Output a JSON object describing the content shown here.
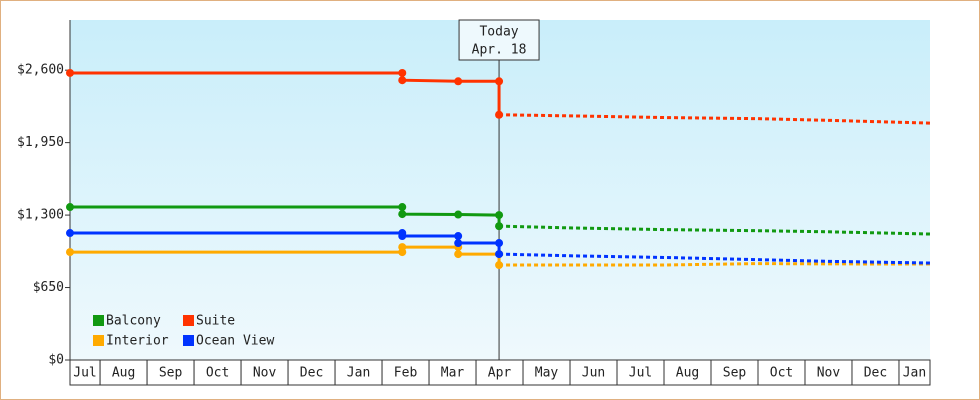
{
  "chart_data": {
    "type": "line",
    "categories": [
      "Jul",
      "Aug",
      "Sep",
      "Oct",
      "Nov",
      "Dec",
      "Jan",
      "Feb",
      "Mar",
      "Apr",
      "May",
      "Jun",
      "Jul",
      "Aug",
      "Sep",
      "Oct",
      "Nov",
      "Dec",
      "Jan"
    ],
    "xlim": [
      0.36,
      18.66
    ],
    "ylim": [
      0,
      3050
    ],
    "yticks": [
      {
        "value": 0,
        "label": "$0"
      },
      {
        "value": 650,
        "label": "$650"
      },
      {
        "value": 1300,
        "label": "$1,300"
      },
      {
        "value": 1950,
        "label": "$1,950"
      },
      {
        "value": 2600,
        "label": "$2,600"
      }
    ],
    "grid": false,
    "legend": "lower left",
    "today": {
      "x": 9.49,
      "label": [
        "Today",
        "Apr. 18"
      ]
    },
    "series": [
      {
        "name": "Balcony",
        "color": "#119911",
        "x": [
          0.36,
          7.43,
          7.43,
          8.62,
          9.49,
          9.49
        ],
        "values": [
          1372,
          1372,
          1309,
          1305,
          1300,
          1201
        ],
        "forecast_x": [
          9.49,
          11,
          13,
          15,
          16.5,
          18.66
        ],
        "forecast_values": [
          1201,
          1185,
          1170,
          1160,
          1150,
          1130
        ]
      },
      {
        "name": "Suite",
        "color": "#ff3300",
        "x": [
          0.36,
          7.43,
          7.43,
          8.62,
          9.49,
          9.49
        ],
        "values": [
          2575,
          2575,
          2510,
          2500,
          2500,
          2200
        ],
        "forecast_x": [
          9.49,
          11,
          13,
          15,
          16.5,
          18.66
        ],
        "forecast_values": [
          2200,
          2190,
          2175,
          2165,
          2150,
          2125
        ]
      },
      {
        "name": "Interior",
        "color": "#ffaa00",
        "x": [
          0.36,
          7.43,
          7.43,
          8.62,
          8.62,
          9.49,
          9.49
        ],
        "values": [
          968,
          968,
          1013,
          1013,
          950,
          950,
          852
        ],
        "forecast_x": [
          9.49,
          11,
          13,
          15,
          16.5,
          18.66
        ],
        "forecast_values": [
          852,
          852,
          852,
          865,
          862,
          861
        ]
      },
      {
        "name": "Ocean View",
        "color": "#0033ff",
        "x": [
          0.36,
          7.43,
          7.43,
          8.62,
          8.62,
          9.49,
          9.49
        ],
        "values": [
          1139,
          1139,
          1112,
          1112,
          1049,
          1049,
          950
        ],
        "forecast_x": [
          9.49,
          11,
          13,
          15,
          16.5,
          18.66
        ],
        "forecast_values": [
          950,
          935,
          920,
          900,
          885,
          870
        ]
      }
    ]
  }
}
